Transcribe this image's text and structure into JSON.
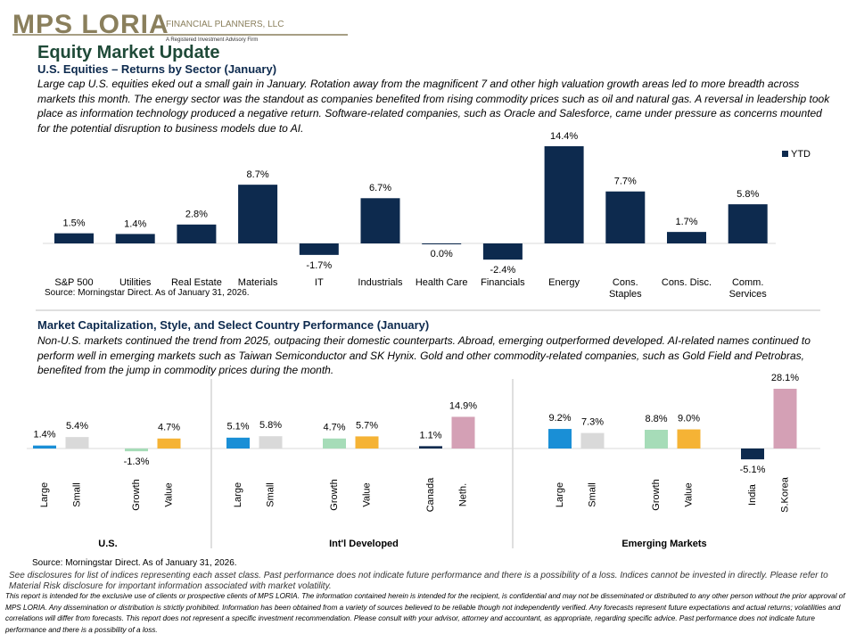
{
  "header": {
    "logo": "MPS LORIA",
    "firm": "FINANCIAL PLANNERS, LLC",
    "tagline": "A Registered Investment Advisory Firm"
  },
  "title": "Equity Market Update",
  "sections": [
    {
      "heading": "U.S. Equities – Returns by Sector (January)",
      "body": "Large cap U.S. equities eked out a small gain in January. Rotation away from the magnificent 7 and other high valuation growth areas led to more breadth across markets this month. The energy sector was the standout as companies benefited from rising commodity prices such as oil and natural gas. A reversal in leadership took place as information technology produced a negative return. Software-related companies, such as Oracle and Salesforce, came under pressure as concerns mounted for the potential disruption to business models due to AI.",
      "source": "Source: Morningstar Direct. As of January 31, 2026."
    },
    {
      "heading": "Market Capitalization, Style, and Select Country Performance (January)",
      "body": "Non-U.S. markets continued the trend from 2025, outpacing their domestic counterparts. Abroad, emerging outperformed developed. AI-related names continued to perform well in emerging markets such as Taiwan Semiconductor and SK Hynix. Gold and other commodity-related companies, such as Gold Field and Petrobras, benefited from the jump in commodity prices during the month.",
      "source": "Source: Morningstar Direct. As of January 31, 2026."
    }
  ],
  "disclosure": "See disclosures for list of indices representing each asset class. Past performance does not indicate future performance and there is a possibility of a loss. Indices cannot be invested in directly. Please refer to Material Risk disclosure for important information associated with market volatility.",
  "fine_print": "This report is intended for the exclusive use of clients or prospective clients of MPS LORIA. The information contained herein is intended for the recipient, is confidential and may not be disseminated or distributed to any other person without the prior approval of MPS LORIA. Any dissemination or distribution is strictly prohibited. Information has been obtained from a variety of sources believed to be reliable though not independently verified. Any forecasts represent future expectations and actual returns; volatilities and correlations will differ from forecasts. This report does not represent a specific investment recommendation. Please consult with your advisor, attorney and accountant, as appropriate, regarding specific advice. Past performance does not indicate future performance and there is a possibility of a loss.",
  "chart_data": [
    {
      "type": "bar",
      "legend": "top-right",
      "categories": [
        "S&P 500",
        "Utilities",
        "Real Estate",
        "Materials",
        "IT",
        "Industrials",
        "Health Care",
        "Financials",
        "Energy",
        "Cons. Staples",
        "Cons. Disc.",
        "Comm. Services"
      ],
      "series": [
        {
          "name": "YTD",
          "color": "#0d2a4e",
          "values": [
            1.5,
            1.4,
            2.8,
            8.7,
            -1.7,
            6.7,
            0.0,
            -2.4,
            14.4,
            7.7,
            1.7,
            5.8
          ],
          "value_labels": [
            "1.5%",
            "1.4%",
            "2.8%",
            "8.7%",
            "-1.7%",
            "6.7%",
            "0.0%",
            "-2.4%",
            "14.4%",
            "7.7%",
            "1.7%",
            "5.8%"
          ]
        }
      ]
    },
    {
      "type": "grouped-bar",
      "groups": [
        {
          "name": "U.S.",
          "categories": [
            "Large",
            "Small",
            "Growth",
            "Value"
          ],
          "values": [
            1.4,
            5.4,
            -1.3,
            4.7
          ],
          "value_labels": [
            "1.4%",
            "5.4%",
            "-1.3%",
            "4.7%"
          ],
          "colors": [
            "#1a8fd6",
            "#d9d9d9",
            "#a6dcb8",
            "#f5b335"
          ]
        },
        {
          "name": "Int'l Developed",
          "categories": [
            "Large",
            "Small",
            "Growth",
            "Value",
            "Canada",
            "Neth."
          ],
          "values": [
            5.1,
            5.8,
            4.7,
            5.7,
            1.1,
            14.9
          ],
          "value_labels": [
            "5.1%",
            "5.8%",
            "4.7%",
            "5.7%",
            "1.1%",
            "14.9%"
          ],
          "colors": [
            "#1a8fd6",
            "#d9d9d9",
            "#a6dcb8",
            "#f5b335",
            "#0d2a4e",
            "#d4a0b5"
          ]
        },
        {
          "name": "Emerging Markets",
          "categories": [
            "Large",
            "Small",
            "Growth",
            "Value",
            "India",
            "S.Korea"
          ],
          "values": [
            9.2,
            7.3,
            8.8,
            9.0,
            -5.1,
            28.1
          ],
          "value_labels": [
            "9.2%",
            "7.3%",
            "8.8%",
            "9.0%",
            "-5.1%",
            "28.1%"
          ],
          "colors": [
            "#1a8fd6",
            "#d9d9d9",
            "#a6dcb8",
            "#f5b335",
            "#0d2a4e",
            "#d4a0b5"
          ]
        }
      ]
    }
  ]
}
